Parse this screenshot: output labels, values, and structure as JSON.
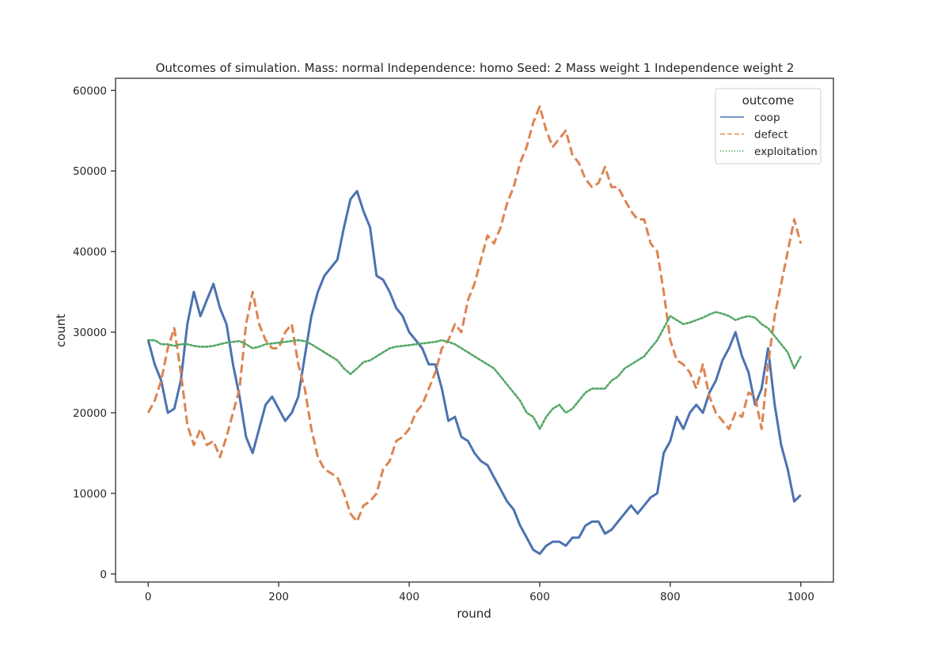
{
  "chart_data": {
    "type": "line",
    "title": "Outcomes of simulation. Mass: normal Independence: homo Seed: 2 Mass weight 1 Independence weight 2",
    "xlabel": "round",
    "ylabel": "count",
    "xlim": [
      -50,
      1050
    ],
    "ylim": [
      -1000,
      61500
    ],
    "xticks": [
      0,
      200,
      400,
      600,
      800,
      1000
    ],
    "yticks": [
      0,
      10000,
      20000,
      30000,
      40000,
      50000,
      60000
    ],
    "grid": false,
    "legend": {
      "title": "outcome",
      "placement": "top-right"
    },
    "colors": {
      "coop": "#4c72b0",
      "defect": "#dd8452",
      "exploitation": "#55a868"
    },
    "series": [
      {
        "name": "coop",
        "style": "solid",
        "points": [
          [
            0,
            29000
          ],
          [
            10,
            26000
          ],
          [
            20,
            24000
          ],
          [
            30,
            20000
          ],
          [
            40,
            20500
          ],
          [
            50,
            24000
          ],
          [
            60,
            31000
          ],
          [
            70,
            35000
          ],
          [
            80,
            32000
          ],
          [
            90,
            34000
          ],
          [
            100,
            36000
          ],
          [
            110,
            33000
          ],
          [
            120,
            31000
          ],
          [
            130,
            26000
          ],
          [
            140,
            22000
          ],
          [
            150,
            17000
          ],
          [
            160,
            15000
          ],
          [
            170,
            18000
          ],
          [
            180,
            21000
          ],
          [
            190,
            22000
          ],
          [
            200,
            20500
          ],
          [
            210,
            19000
          ],
          [
            220,
            20000
          ],
          [
            230,
            22000
          ],
          [
            240,
            27000
          ],
          [
            250,
            32000
          ],
          [
            260,
            35000
          ],
          [
            270,
            37000
          ],
          [
            280,
            38000
          ],
          [
            290,
            39000
          ],
          [
            300,
            43000
          ],
          [
            310,
            46500
          ],
          [
            320,
            47500
          ],
          [
            330,
            45000
          ],
          [
            340,
            43000
          ],
          [
            350,
            37000
          ],
          [
            360,
            36500
          ],
          [
            370,
            35000
          ],
          [
            380,
            33000
          ],
          [
            390,
            32000
          ],
          [
            400,
            30000
          ],
          [
            410,
            29000
          ],
          [
            420,
            28000
          ],
          [
            430,
            26000
          ],
          [
            440,
            26000
          ],
          [
            450,
            23000
          ],
          [
            460,
            19000
          ],
          [
            470,
            19500
          ],
          [
            480,
            17000
          ],
          [
            490,
            16500
          ],
          [
            500,
            15000
          ],
          [
            510,
            14000
          ],
          [
            520,
            13500
          ],
          [
            530,
            12000
          ],
          [
            540,
            10500
          ],
          [
            550,
            9000
          ],
          [
            560,
            8000
          ],
          [
            570,
            6000
          ],
          [
            580,
            4500
          ],
          [
            590,
            3000
          ],
          [
            600,
            2500
          ],
          [
            610,
            3500
          ],
          [
            620,
            4000
          ],
          [
            630,
            4000
          ],
          [
            640,
            3500
          ],
          [
            650,
            4500
          ],
          [
            660,
            4500
          ],
          [
            670,
            6000
          ],
          [
            680,
            6500
          ],
          [
            690,
            6500
          ],
          [
            700,
            5000
          ],
          [
            710,
            5500
          ],
          [
            720,
            6500
          ],
          [
            730,
            7500
          ],
          [
            740,
            8500
          ],
          [
            750,
            7500
          ],
          [
            760,
            8500
          ],
          [
            770,
            9500
          ],
          [
            780,
            10000
          ],
          [
            790,
            15000
          ],
          [
            800,
            16500
          ],
          [
            810,
            19500
          ],
          [
            820,
            18000
          ],
          [
            830,
            20000
          ],
          [
            840,
            21000
          ],
          [
            850,
            20000
          ],
          [
            860,
            22500
          ],
          [
            870,
            24000
          ],
          [
            880,
            26500
          ],
          [
            890,
            28000
          ],
          [
            900,
            30000
          ],
          [
            910,
            27000
          ],
          [
            920,
            25000
          ],
          [
            930,
            21000
          ],
          [
            940,
            23000
          ],
          [
            950,
            28000
          ],
          [
            960,
            21000
          ],
          [
            970,
            16000
          ],
          [
            980,
            13000
          ],
          [
            990,
            9000
          ],
          [
            1000,
            9800
          ]
        ]
      },
      {
        "name": "defect",
        "style": "dashed",
        "points": [
          [
            0,
            20000
          ],
          [
            10,
            21500
          ],
          [
            20,
            24000
          ],
          [
            30,
            28000
          ],
          [
            40,
            30500
          ],
          [
            50,
            25000
          ],
          [
            60,
            18500
          ],
          [
            70,
            16000
          ],
          [
            80,
            18000
          ],
          [
            90,
            16000
          ],
          [
            100,
            16500
          ],
          [
            110,
            14500
          ],
          [
            120,
            17000
          ],
          [
            130,
            20000
          ],
          [
            140,
            23000
          ],
          [
            150,
            31000
          ],
          [
            160,
            35000
          ],
          [
            170,
            31000
          ],
          [
            180,
            29000
          ],
          [
            190,
            28000
          ],
          [
            200,
            28000
          ],
          [
            210,
            30000
          ],
          [
            220,
            31000
          ],
          [
            230,
            26000
          ],
          [
            240,
            23000
          ],
          [
            250,
            18000
          ],
          [
            260,
            14500
          ],
          [
            270,
            13000
          ],
          [
            280,
            12500
          ],
          [
            290,
            12000
          ],
          [
            300,
            10000
          ],
          [
            310,
            7500
          ],
          [
            320,
            6500
          ],
          [
            330,
            8500
          ],
          [
            340,
            9000
          ],
          [
            350,
            10000
          ],
          [
            360,
            13000
          ],
          [
            370,
            14000
          ],
          [
            380,
            16500
          ],
          [
            390,
            17000
          ],
          [
            400,
            18000
          ],
          [
            410,
            20000
          ],
          [
            420,
            21000
          ],
          [
            430,
            23000
          ],
          [
            440,
            25000
          ],
          [
            450,
            28000
          ],
          [
            460,
            29000
          ],
          [
            470,
            31000
          ],
          [
            480,
            30000
          ],
          [
            490,
            34000
          ],
          [
            500,
            36000
          ],
          [
            510,
            39000
          ],
          [
            520,
            42000
          ],
          [
            530,
            41000
          ],
          [
            540,
            43000
          ],
          [
            550,
            46000
          ],
          [
            560,
            48000
          ],
          [
            570,
            51000
          ],
          [
            580,
            53000
          ],
          [
            590,
            56000
          ],
          [
            600,
            58000
          ],
          [
            610,
            55000
          ],
          [
            620,
            53000
          ],
          [
            630,
            54000
          ],
          [
            640,
            55000
          ],
          [
            650,
            52000
          ],
          [
            660,
            51000
          ],
          [
            670,
            49000
          ],
          [
            680,
            48000
          ],
          [
            690,
            48500
          ],
          [
            700,
            50500
          ],
          [
            710,
            48000
          ],
          [
            720,
            48000
          ],
          [
            730,
            46500
          ],
          [
            740,
            45000
          ],
          [
            750,
            44000
          ],
          [
            760,
            44000
          ],
          [
            770,
            41000
          ],
          [
            780,
            40000
          ],
          [
            790,
            35000
          ],
          [
            800,
            29000
          ],
          [
            810,
            26500
          ],
          [
            820,
            26000
          ],
          [
            830,
            25000
          ],
          [
            840,
            23000
          ],
          [
            850,
            26000
          ],
          [
            860,
            22000
          ],
          [
            870,
            20000
          ],
          [
            880,
            19000
          ],
          [
            890,
            18000
          ],
          [
            900,
            20000
          ],
          [
            910,
            19500
          ],
          [
            920,
            22500
          ],
          [
            930,
            22000
          ],
          [
            940,
            18000
          ],
          [
            950,
            26000
          ],
          [
            960,
            32000
          ],
          [
            970,
            36000
          ],
          [
            980,
            40000
          ],
          [
            990,
            44000
          ],
          [
            1000,
            41000
          ]
        ]
      },
      {
        "name": "exploitation",
        "style": "dotted",
        "points": [
          [
            0,
            29000
          ],
          [
            10,
            29000
          ],
          [
            20,
            28500
          ],
          [
            30,
            28500
          ],
          [
            40,
            28300
          ],
          [
            50,
            28500
          ],
          [
            60,
            28500
          ],
          [
            70,
            28300
          ],
          [
            80,
            28200
          ],
          [
            90,
            28200
          ],
          [
            100,
            28300
          ],
          [
            110,
            28500
          ],
          [
            120,
            28700
          ],
          [
            130,
            28800
          ],
          [
            140,
            28900
          ],
          [
            150,
            28500
          ],
          [
            160,
            28000
          ],
          [
            170,
            28200
          ],
          [
            180,
            28500
          ],
          [
            190,
            28600
          ],
          [
            200,
            28700
          ],
          [
            210,
            28800
          ],
          [
            220,
            28900
          ],
          [
            230,
            29000
          ],
          [
            240,
            28900
          ],
          [
            250,
            28500
          ],
          [
            260,
            28000
          ],
          [
            270,
            27500
          ],
          [
            280,
            27000
          ],
          [
            290,
            26500
          ],
          [
            300,
            25500
          ],
          [
            310,
            24800
          ],
          [
            320,
            25500
          ],
          [
            330,
            26300
          ],
          [
            340,
            26500
          ],
          [
            350,
            27000
          ],
          [
            360,
            27500
          ],
          [
            370,
            28000
          ],
          [
            380,
            28200
          ],
          [
            390,
            28300
          ],
          [
            400,
            28400
          ],
          [
            410,
            28500
          ],
          [
            420,
            28600
          ],
          [
            430,
            28700
          ],
          [
            440,
            28800
          ],
          [
            450,
            29000
          ],
          [
            460,
            28800
          ],
          [
            470,
            28500
          ],
          [
            480,
            28000
          ],
          [
            490,
            27500
          ],
          [
            500,
            27000
          ],
          [
            510,
            26500
          ],
          [
            520,
            26000
          ],
          [
            530,
            25500
          ],
          [
            540,
            24500
          ],
          [
            550,
            23500
          ],
          [
            560,
            22500
          ],
          [
            570,
            21500
          ],
          [
            580,
            20000
          ],
          [
            590,
            19500
          ],
          [
            600,
            18000
          ],
          [
            610,
            19500
          ],
          [
            620,
            20500
          ],
          [
            630,
            21000
          ],
          [
            640,
            20000
          ],
          [
            650,
            20500
          ],
          [
            660,
            21500
          ],
          [
            670,
            22500
          ],
          [
            680,
            23000
          ],
          [
            690,
            23000
          ],
          [
            700,
            23000
          ],
          [
            710,
            24000
          ],
          [
            720,
            24500
          ],
          [
            730,
            25500
          ],
          [
            740,
            26000
          ],
          [
            750,
            26500
          ],
          [
            760,
            27000
          ],
          [
            770,
            28000
          ],
          [
            780,
            29000
          ],
          [
            790,
            30500
          ],
          [
            800,
            32000
          ],
          [
            810,
            31500
          ],
          [
            820,
            31000
          ],
          [
            830,
            31200
          ],
          [
            840,
            31500
          ],
          [
            850,
            31800
          ],
          [
            860,
            32200
          ],
          [
            870,
            32500
          ],
          [
            880,
            32300
          ],
          [
            890,
            32000
          ],
          [
            900,
            31500
          ],
          [
            910,
            31800
          ],
          [
            920,
            32000
          ],
          [
            930,
            31800
          ],
          [
            940,
            31000
          ],
          [
            950,
            30500
          ],
          [
            960,
            29500
          ],
          [
            970,
            28500
          ],
          [
            980,
            27500
          ],
          [
            990,
            25500
          ],
          [
            1000,
            27000
          ]
        ]
      }
    ]
  }
}
